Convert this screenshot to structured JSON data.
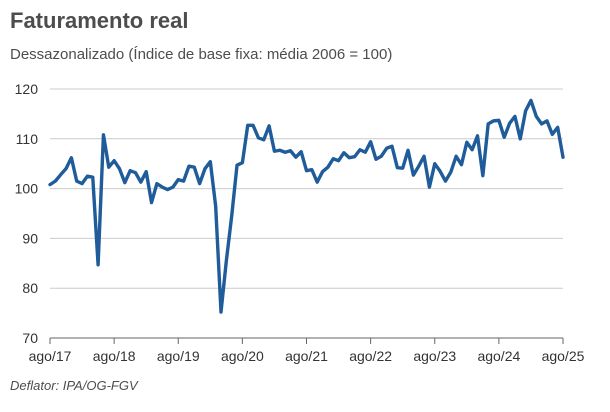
{
  "header": {
    "title": "Faturamento real",
    "subtitle": "Dessazonalizado (Índice de base fixa: média 2006 = 100)"
  },
  "footer": {
    "deflator": "Deflator: IPA/OG-FGV"
  },
  "colors": {
    "line": "#1f5c99",
    "grid": "#cccccc",
    "axis": "#666666"
  },
  "chart_data": {
    "type": "line",
    "title": "Faturamento real",
    "xlabel": "",
    "ylabel": "",
    "ylim": [
      70,
      120
    ],
    "yticks": [
      70,
      80,
      90,
      100,
      110,
      120
    ],
    "xticks": [
      "ago/17",
      "ago/18",
      "ago/19",
      "ago/20",
      "ago/21",
      "ago/22",
      "ago/23",
      "ago/24",
      "ago/25"
    ],
    "grid": true,
    "series": [
      {
        "name": "Faturamento real",
        "x_start": "ago/17",
        "frequency": "monthly",
        "values": [
          100.8,
          101.5,
          102.8,
          104.0,
          106.2,
          101.5,
          101.0,
          102.5,
          102.3,
          84.7,
          110.8,
          104.3,
          105.6,
          104.0,
          101.2,
          103.6,
          103.2,
          101.3,
          103.4,
          97.2,
          101.0,
          100.3,
          99.8,
          100.3,
          101.8,
          101.5,
          104.5,
          104.3,
          101.0,
          104.0,
          105.4,
          96.5,
          75.2,
          85.5,
          94.5,
          104.7,
          105.2,
          112.7,
          112.7,
          110.2,
          109.8,
          112.6,
          107.5,
          107.7,
          107.3,
          107.6,
          106.3,
          107.4,
          103.6,
          103.8,
          101.3,
          103.4,
          104.3,
          106.0,
          105.6,
          107.2,
          106.2,
          106.4,
          107.8,
          107.3,
          109.4,
          105.9,
          106.5,
          108.1,
          108.5,
          104.2,
          104.1,
          107.7,
          102.7,
          104.5,
          106.5,
          100.3,
          105.0,
          103.5,
          101.5,
          103.3,
          106.5,
          104.8,
          109.3,
          107.8,
          110.6,
          102.6,
          113.0,
          113.6,
          113.7,
          110.3,
          113.1,
          114.5,
          110.0,
          115.6,
          117.7,
          114.5,
          113.0,
          113.6,
          110.9,
          112.3,
          106.3
        ]
      }
    ]
  }
}
